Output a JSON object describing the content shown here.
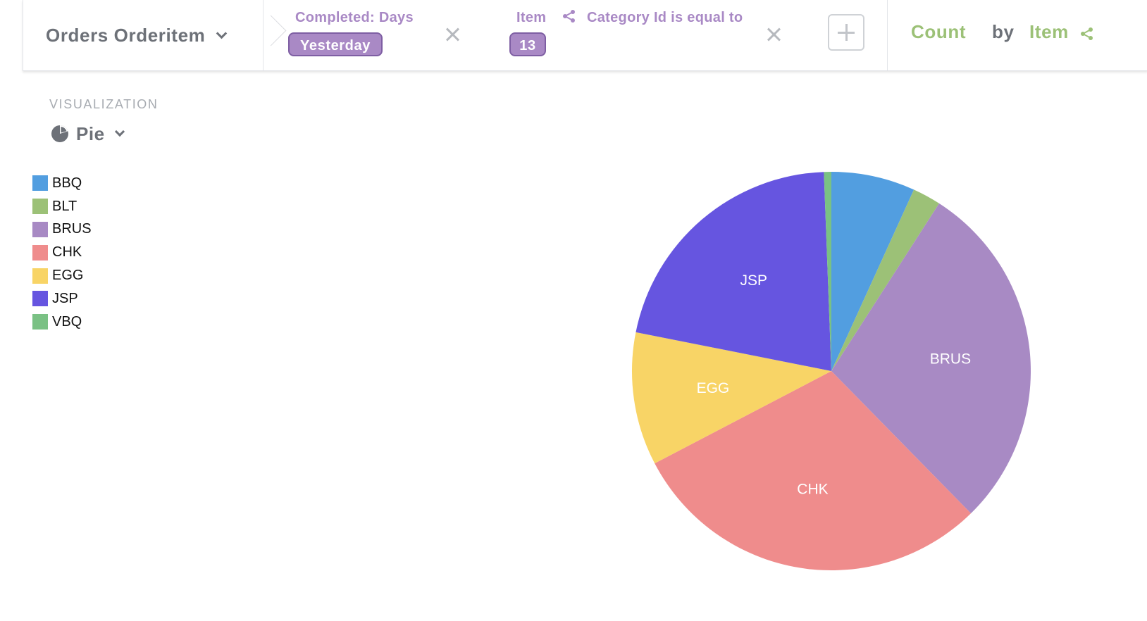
{
  "query_bar": {
    "source": "Orders Orderitem",
    "filters": [
      {
        "label": "Completed: Days",
        "value": "Yesterday"
      },
      {
        "label_prefix": "Item",
        "label_suffix": "Category Id is equal to",
        "value": "13"
      }
    ],
    "aggregation": {
      "metric": "Count",
      "by": "by",
      "breakout": "Item"
    }
  },
  "visualization": {
    "heading": "VISUALIZATION",
    "selected": "Pie"
  },
  "colors": {
    "accent_purple": "#a989c5",
    "accent_green": "#9cc177",
    "text_gray": "#6d7178"
  },
  "chart_data": {
    "type": "pie",
    "categories": [
      "BBQ",
      "BLT",
      "BRUS",
      "CHK",
      "EGG",
      "JSP",
      "VBQ"
    ],
    "values": [
      6.8,
      2.3,
      28.6,
      29.7,
      10.8,
      21.3,
      0.6
    ],
    "colors": [
      "#529ee0",
      "#9cc177",
      "#a88ac4",
      "#ef8c8c",
      "#f8d466",
      "#6655e0",
      "#7ac184"
    ],
    "slice_labels_shown": [
      "BRUS",
      "CHK",
      "EGG",
      "JSP"
    ],
    "legend_position": "left"
  }
}
